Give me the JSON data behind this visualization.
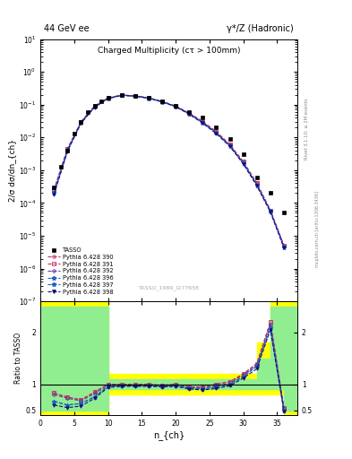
{
  "title_left": "44 GeV ee",
  "title_right": "γ*/Z (Hadronic)",
  "plot_title": "Charged Multiplicity (cτ > 100mm)",
  "ylabel_main": "2/σ dσ/dn_{ch}",
  "ylabel_ratio": "Ratio to TASSO",
  "xlabel": "n_{ch}",
  "watermark": "TASSO_1989_I277658",
  "right_label_top": "Rivet 3.1.10; ≥ 2M events",
  "right_label_bot": "mcplots.cern.ch [arXiv:1306.3436]",
  "tasso_x": [
    2,
    3,
    4,
    5,
    6,
    7,
    8,
    9,
    10,
    12,
    14,
    16,
    18,
    20,
    22,
    24,
    26,
    28,
    30,
    32,
    34,
    36
  ],
  "tasso_y": [
    0.0003,
    0.0013,
    0.004,
    0.013,
    0.03,
    0.06,
    0.09,
    0.13,
    0.16,
    0.19,
    0.18,
    0.16,
    0.13,
    0.09,
    0.06,
    0.04,
    0.02,
    0.009,
    0.003,
    0.0006,
    0.0002,
    5e-05
  ],
  "mc_x": [
    2,
    4,
    6,
    8,
    10,
    12,
    14,
    16,
    18,
    20,
    22,
    24,
    26,
    28,
    30,
    32,
    34,
    36
  ],
  "py390_y": [
    0.00025,
    0.0045,
    0.03,
    0.09,
    0.16,
    0.195,
    0.185,
    0.16,
    0.125,
    0.09,
    0.055,
    0.03,
    0.015,
    0.006,
    0.0018,
    0.0004,
    6e-05,
    5e-06
  ],
  "py391_y": [
    0.00025,
    0.0045,
    0.03,
    0.09,
    0.16,
    0.195,
    0.185,
    0.16,
    0.125,
    0.09,
    0.055,
    0.03,
    0.015,
    0.006,
    0.0018,
    0.0004,
    6e-05,
    5e-06
  ],
  "py392_y": [
    0.00024,
    0.0044,
    0.029,
    0.088,
    0.158,
    0.193,
    0.183,
    0.158,
    0.123,
    0.088,
    0.053,
    0.029,
    0.014,
    0.0058,
    0.0017,
    0.00038,
    5.8e-05,
    4.8e-06
  ],
  "py396_y": [
    0.0002,
    0.004,
    0.028,
    0.085,
    0.155,
    0.192,
    0.182,
    0.157,
    0.122,
    0.087,
    0.052,
    0.028,
    0.0135,
    0.0055,
    0.0016,
    0.00035,
    5.5e-05,
    4.5e-06
  ],
  "py397_y": [
    0.0002,
    0.004,
    0.028,
    0.085,
    0.155,
    0.192,
    0.182,
    0.157,
    0.122,
    0.087,
    0.052,
    0.028,
    0.0135,
    0.0055,
    0.0016,
    0.00035,
    5.5e-05,
    4.5e-06
  ],
  "py398_y": [
    0.00018,
    0.0038,
    0.027,
    0.083,
    0.153,
    0.191,
    0.181,
    0.156,
    0.121,
    0.086,
    0.051,
    0.027,
    0.013,
    0.0053,
    0.00155,
    0.00033,
    5.3e-05,
    4.3e-06
  ],
  "ratio_mc_x": [
    2,
    4,
    6,
    8,
    10,
    12,
    14,
    16,
    18,
    20,
    22,
    24,
    26,
    28,
    30,
    32,
    34,
    36
  ],
  "ratio390_y": [
    0.83,
    0.75,
    0.7,
    0.85,
    1.0,
    1.0,
    1.0,
    1.0,
    0.98,
    1.0,
    0.95,
    0.95,
    1.0,
    1.05,
    1.2,
    1.4,
    2.2,
    0.55
  ],
  "ratio391_y": [
    0.83,
    0.75,
    0.7,
    0.85,
    1.0,
    1.0,
    1.0,
    1.0,
    0.98,
    1.0,
    0.95,
    0.95,
    1.0,
    1.05,
    1.2,
    1.4,
    2.2,
    0.55
  ],
  "ratio392_y": [
    0.8,
    0.73,
    0.68,
    0.82,
    0.98,
    0.98,
    0.98,
    0.98,
    0.96,
    0.98,
    0.93,
    0.93,
    0.97,
    1.02,
    1.18,
    1.37,
    2.15,
    0.52
  ],
  "ratio396_y": [
    0.67,
    0.6,
    0.63,
    0.76,
    0.96,
    0.97,
    0.97,
    0.97,
    0.96,
    0.97,
    0.93,
    0.91,
    0.95,
    1.0,
    1.15,
    1.35,
    2.1,
    0.5
  ],
  "ratio397_y": [
    0.67,
    0.6,
    0.63,
    0.76,
    0.96,
    0.97,
    0.97,
    0.97,
    0.96,
    0.97,
    0.93,
    0.91,
    0.95,
    1.0,
    1.15,
    1.35,
    2.1,
    0.5
  ],
  "ratio398_y": [
    0.6,
    0.55,
    0.58,
    0.73,
    0.94,
    0.96,
    0.96,
    0.96,
    0.95,
    0.96,
    0.91,
    0.89,
    0.92,
    0.97,
    1.12,
    1.3,
    2.05,
    0.48
  ],
  "color390": "#c03060",
  "color391": "#c03060",
  "color392": "#6040a0",
  "color396": "#2060c0",
  "color397": "#2060c0",
  "color398": "#101080",
  "xlim": [
    0,
    38
  ],
  "ylim_main": [
    1e-07,
    10
  ],
  "ylim_ratio": [
    0.4,
    2.6
  ],
  "yticks_ratio": [
    0.5,
    1.0,
    2.0
  ],
  "band_edges": [
    0,
    2,
    4,
    6,
    8,
    10,
    12,
    14,
    16,
    18,
    20,
    22,
    24,
    26,
    28,
    30,
    32,
    34,
    36,
    38
  ],
  "green_lo": [
    0.5,
    0.5,
    0.5,
    0.5,
    0.5,
    0.9,
    0.9,
    0.9,
    0.9,
    0.9,
    0.9,
    0.9,
    0.9,
    0.9,
    0.9,
    0.9,
    0.9,
    0.9,
    0.5,
    0.5
  ],
  "green_hi": [
    2.5,
    2.5,
    2.5,
    2.5,
    2.5,
    1.1,
    1.1,
    1.1,
    1.1,
    1.1,
    1.1,
    1.1,
    1.1,
    1.1,
    1.1,
    1.1,
    1.5,
    2.5,
    2.5,
    2.5
  ],
  "yellow_lo": [
    0.4,
    0.4,
    0.4,
    0.4,
    0.4,
    0.8,
    0.8,
    0.8,
    0.8,
    0.8,
    0.8,
    0.8,
    0.8,
    0.8,
    0.8,
    0.8,
    0.8,
    0.8,
    0.4,
    0.4
  ],
  "yellow_hi": [
    2.6,
    2.6,
    2.6,
    2.6,
    2.6,
    1.2,
    1.2,
    1.2,
    1.2,
    1.2,
    1.2,
    1.2,
    1.2,
    1.2,
    1.2,
    1.2,
    1.8,
    2.6,
    2.6,
    2.6
  ]
}
